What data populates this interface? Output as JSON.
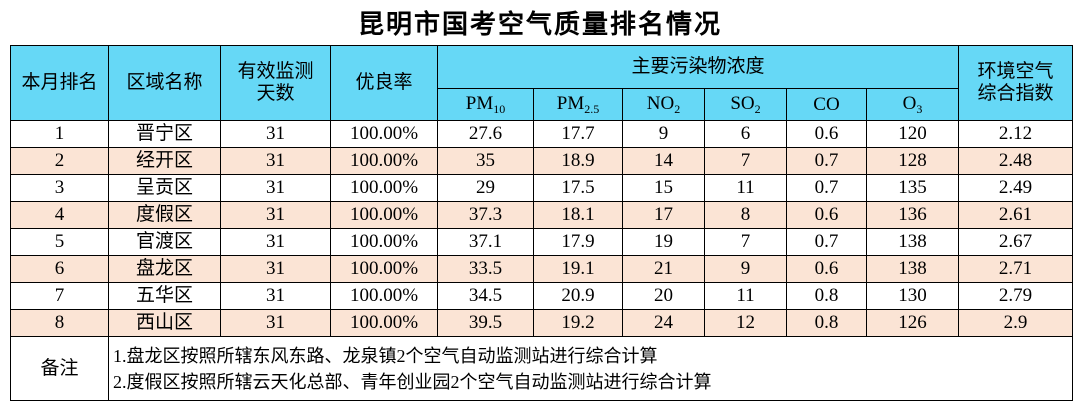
{
  "title": "昆明市国考空气质量排名情况",
  "table": {
    "headers": {
      "rank": "本月排名",
      "region": "区域名称",
      "days": [
        "有效监测",
        "天数"
      ],
      "rate": "优良率",
      "pollutants": "主要污染物浓度",
      "index": [
        "环境空气",
        "综合指数"
      ]
    },
    "pollutant_columns": [
      {
        "main": "PM",
        "sub": "10"
      },
      {
        "main": "PM",
        "sub": "2.5"
      },
      {
        "main": "NO",
        "sub": "2"
      },
      {
        "main": "SO",
        "sub": "2"
      },
      {
        "main": "CO"
      },
      {
        "main": "O",
        "sub": "3"
      }
    ],
    "rows": [
      [
        "1",
        "晋宁区",
        "31",
        "100.00%",
        "27.6",
        "17.7",
        "9",
        "6",
        "0.6",
        "120",
        "2.12"
      ],
      [
        "2",
        "经开区",
        "31",
        "100.00%",
        "35",
        "18.9",
        "14",
        "7",
        "0.7",
        "128",
        "2.48"
      ],
      [
        "3",
        "呈贡区",
        "31",
        "100.00%",
        "29",
        "17.5",
        "15",
        "11",
        "0.7",
        "135",
        "2.49"
      ],
      [
        "4",
        "度假区",
        "31",
        "100.00%",
        "37.3",
        "18.1",
        "17",
        "8",
        "0.6",
        "136",
        "2.61"
      ],
      [
        "5",
        "官渡区",
        "31",
        "100.00%",
        "37.1",
        "17.9",
        "19",
        "7",
        "0.7",
        "138",
        "2.67"
      ],
      [
        "6",
        "盘龙区",
        "31",
        "100.00%",
        "33.5",
        "19.1",
        "21",
        "9",
        "0.6",
        "138",
        "2.71"
      ],
      [
        "7",
        "五华区",
        "31",
        "100.00%",
        "34.5",
        "20.9",
        "20",
        "11",
        "0.8",
        "130",
        "2.79"
      ],
      [
        "8",
        "西山区",
        "31",
        "100.00%",
        "39.5",
        "19.2",
        "24",
        "12",
        "0.8",
        "126",
        "2.9"
      ]
    ],
    "note_label": "备注",
    "notes": [
      "1.盘龙区按照所辖东风东路、龙泉镇2个空气自动监测站进行综合计算",
      "2.度假区按照所辖云天化总部、青年创业园2个空气自动监测站进行综合计算"
    ]
  }
}
